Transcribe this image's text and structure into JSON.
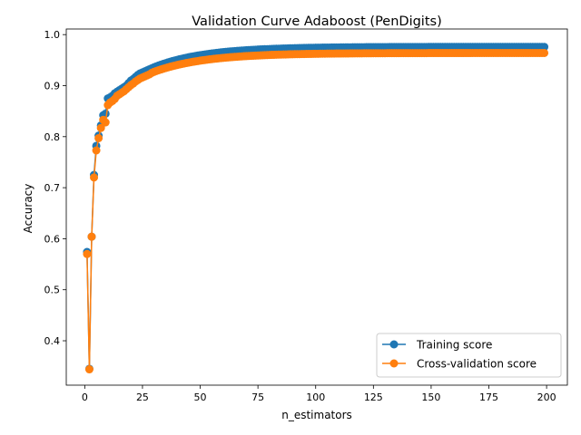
{
  "chart_data": {
    "type": "line",
    "title": "Validation Curve Adaboost (PenDigits)",
    "xlabel": "n_estimators",
    "ylabel": "Accuracy",
    "xlim": [
      -8,
      209
    ],
    "ylim": [
      0.313,
      1.011
    ],
    "xticks": [
      0,
      25,
      50,
      75,
      100,
      125,
      150,
      175,
      200
    ],
    "yticks": [
      0.4,
      0.5,
      0.6,
      0.7,
      0.8,
      0.9,
      1.0
    ],
    "ytick_labels": [
      "0.4",
      "0.5",
      "0.6",
      "0.7",
      "0.8",
      "0.9",
      "1.0"
    ],
    "grid": false,
    "legend_position": "lower-right",
    "x_range": {
      "start": 1,
      "end": 199,
      "step": 1
    },
    "series": [
      {
        "name": "Training score",
        "color": "#1f77b4",
        "marker": "circle",
        "band": true,
        "values_head": [
          0.574,
          0.345,
          0.604,
          0.725,
          0.782,
          0.802,
          0.822,
          0.842,
          0.845,
          0.875,
          0.877,
          0.88,
          0.885,
          0.888,
          0.891,
          0.894,
          0.897,
          0.9,
          0.905,
          0.91,
          0.913,
          0.917,
          0.921,
          0.924,
          0.926,
          0.928,
          0.93,
          0.932,
          0.934,
          0.936
        ],
        "tail_curve": {
          "start_x": 30,
          "start": 0.936,
          "end": 0.976,
          "rate": 0.045
        }
      },
      {
        "name": "Cross-validation score",
        "color": "#ff7f0e",
        "marker": "circle",
        "band": true,
        "values_head": [
          0.57,
          0.344,
          0.604,
          0.72,
          0.773,
          0.797,
          0.817,
          0.833,
          0.828,
          0.862,
          0.867,
          0.87,
          0.874,
          0.88,
          0.883,
          0.886,
          0.889,
          0.893,
          0.897,
          0.901,
          0.904,
          0.908,
          0.911,
          0.914,
          0.916,
          0.918,
          0.92,
          0.922,
          0.925,
          0.927
        ],
        "tail_curve": {
          "start_x": 30,
          "start": 0.927,
          "end": 0.964,
          "rate": 0.045
        }
      }
    ]
  }
}
